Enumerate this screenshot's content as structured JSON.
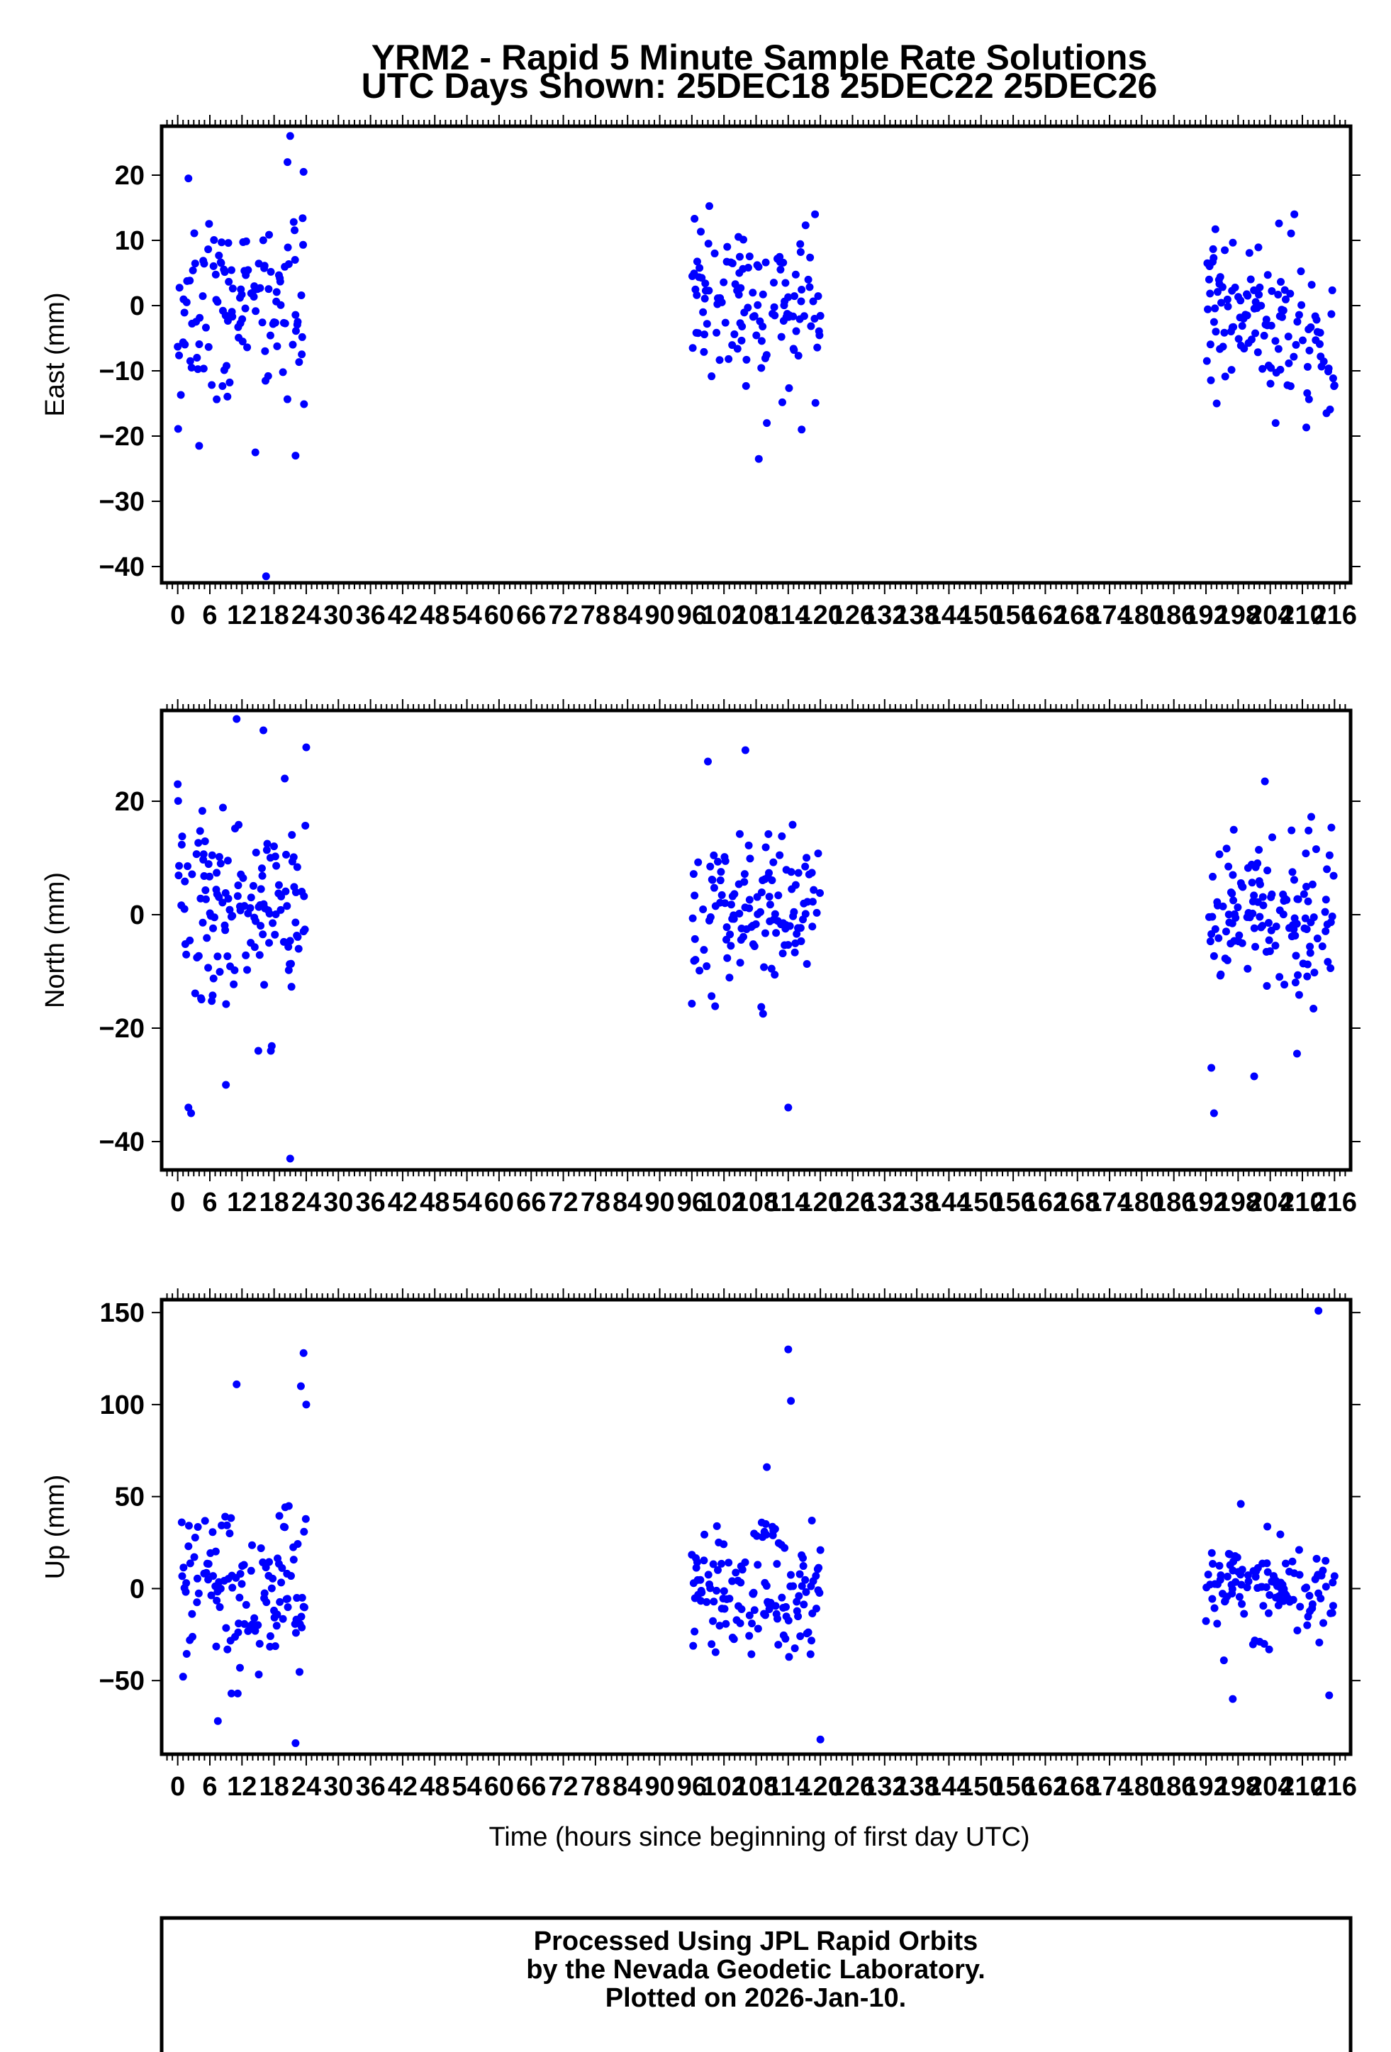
{
  "page": {
    "title_line1": "YRM2 - Rapid 5 Minute Sample Rate Solutions",
    "title_line2": "UTC Days Shown:  25DEC18 25DEC22 25DEC26",
    "xlabel": "Time (hours since beginning of first day UTC)",
    "footer_line1": "Processed Using JPL Rapid Orbits",
    "footer_line2": "by the Nevada Geodetic Laboratory.",
    "footer_line3": "Plotted on 2026-Jan-10."
  },
  "style": {
    "point_color": "#0000ff",
    "axis_color": "#000000",
    "background": "#ffffff"
  },
  "chart_data": [
    {
      "type": "scatter",
      "ylabel": "East (mm)",
      "xlim": [
        -3,
        219
      ],
      "ylim": [
        -42.5,
        27.5
      ],
      "yticks": [
        -40,
        -30,
        -20,
        -10,
        0,
        10,
        20
      ],
      "xticks": [
        0,
        6,
        12,
        18,
        24,
        30,
        36,
        42,
        48,
        54,
        60,
        66,
        72,
        78,
        84,
        90,
        96,
        102,
        108,
        114,
        120,
        126,
        132,
        138,
        144,
        150,
        156,
        162,
        168,
        174,
        180,
        186,
        192,
        198,
        204,
        210,
        216
      ],
      "series": [
        {
          "segment": "25DEC18",
          "x_start": 0,
          "x_end": 24,
          "count": 288,
          "amplitude": 12,
          "trend": [
            -3,
            3
          ],
          "outliers": [
            [
              2.0,
              19.5
            ],
            [
              4.0,
              -21.5
            ],
            [
              14.5,
              -22.5
            ],
            [
              16.5,
              -41.5
            ],
            [
              21.0,
              26.0
            ],
            [
              20.5,
              22.0
            ],
            [
              23.5,
              20.5
            ],
            [
              22.0,
              -23.0
            ]
          ]
        },
        {
          "segment": "25DEC22",
          "x_start": 96,
          "x_end": 120,
          "count": 288,
          "amplitude": 10,
          "trend": [
            1,
            -1
          ],
          "outliers": [
            [
              108.5,
              -23.5
            ],
            [
              110.0,
              -18.0
            ],
            [
              119.0,
              14.0
            ],
            [
              116.5,
              -19.0
            ]
          ]
        },
        {
          "segment": "25DEC26",
          "x_start": 192,
          "x_end": 216,
          "count": 288,
          "amplitude": 10,
          "trend": [
            1,
            -5
          ],
          "outliers": [
            [
              194.0,
              -15.0
            ],
            [
              205.0,
              -18.0
            ],
            [
              208.5,
              14.0
            ],
            [
              214.5,
              -16.5
            ]
          ]
        }
      ]
    },
    {
      "type": "scatter",
      "ylabel": "North (mm)",
      "xlim": [
        -3,
        219
      ],
      "ylim": [
        -45,
        36
      ],
      "yticks": [
        -40,
        -20,
        0,
        20
      ],
      "xticks": [
        0,
        6,
        12,
        18,
        24,
        30,
        36,
        42,
        48,
        54,
        60,
        66,
        72,
        78,
        84,
        90,
        96,
        102,
        108,
        114,
        120,
        126,
        132,
        138,
        144,
        150,
        156,
        162,
        168,
        174,
        180,
        186,
        192,
        198,
        204,
        210,
        216
      ],
      "series": [
        {
          "segment": "25DEC18",
          "x_start": 0,
          "x_end": 24,
          "count": 288,
          "amplitude": 16,
          "trend": [
            0,
            0
          ],
          "outliers": [
            [
              2.5,
              -35.0
            ],
            [
              2.0,
              -34.0
            ],
            [
              11.0,
              34.5
            ],
            [
              16.0,
              32.5
            ],
            [
              9.0,
              -30.0
            ],
            [
              21.0,
              -43.0
            ],
            [
              24.0,
              29.5
            ]
          ]
        },
        {
          "segment": "25DEC22",
          "x_start": 96,
          "x_end": 120,
          "count": 288,
          "amplitude": 14,
          "trend": [
            0,
            0
          ],
          "outliers": [
            [
              106.0,
              29.0
            ],
            [
              114.0,
              -34.0
            ],
            [
              99.0,
              27.0
            ]
          ]
        },
        {
          "segment": "25DEC26",
          "x_start": 192,
          "x_end": 216,
          "count": 288,
          "amplitude": 12,
          "trend": [
            0,
            0
          ],
          "outliers": [
            [
              193.5,
              -35.0
            ],
            [
              193.0,
              -27.0
            ],
            [
              201.0,
              -28.5
            ],
            [
              203.0,
              23.5
            ],
            [
              209.0,
              -24.5
            ]
          ]
        }
      ]
    },
    {
      "type": "scatter",
      "ylabel": "Up (mm)",
      "xlim": [
        -3,
        219
      ],
      "ylim": [
        -90,
        157
      ],
      "yticks": [
        -50,
        0,
        50,
        100,
        150
      ],
      "xticks": [
        0,
        6,
        12,
        18,
        24,
        30,
        36,
        42,
        48,
        54,
        60,
        66,
        72,
        78,
        84,
        90,
        96,
        102,
        108,
        114,
        120,
        126,
        132,
        138,
        144,
        150,
        156,
        162,
        168,
        174,
        180,
        186,
        192,
        198,
        204,
        210,
        216
      ],
      "series": [
        {
          "segment": "25DEC18",
          "x_start": 0,
          "x_end": 24,
          "count": 288,
          "amplitude": 38,
          "trend": [
            0,
            0
          ],
          "outliers": [
            [
              11.0,
              111.0
            ],
            [
              23.5,
              128.0
            ],
            [
              23.0,
              110.0
            ],
            [
              22.0,
              -84.0
            ],
            [
              7.5,
              -72.0
            ],
            [
              24.0,
              100.0
            ]
          ]
        },
        {
          "segment": "25DEC22",
          "x_start": 96,
          "x_end": 120,
          "count": 288,
          "amplitude": 32,
          "trend": [
            0,
            0
          ],
          "outliers": [
            [
              114.0,
              130.0
            ],
            [
              114.5,
              102.0
            ],
            [
              120.0,
              -82.0
            ],
            [
              110.0,
              66.0
            ]
          ]
        },
        {
          "segment": "25DEC26",
          "x_start": 192,
          "x_end": 216,
          "count": 288,
          "amplitude": 26,
          "trend": [
            0,
            0
          ],
          "outliers": [
            [
              213.0,
              151.0
            ],
            [
              215.0,
              -58.0
            ],
            [
              197.0,
              -60.0
            ],
            [
              198.5,
              46.0
            ]
          ]
        }
      ]
    }
  ]
}
